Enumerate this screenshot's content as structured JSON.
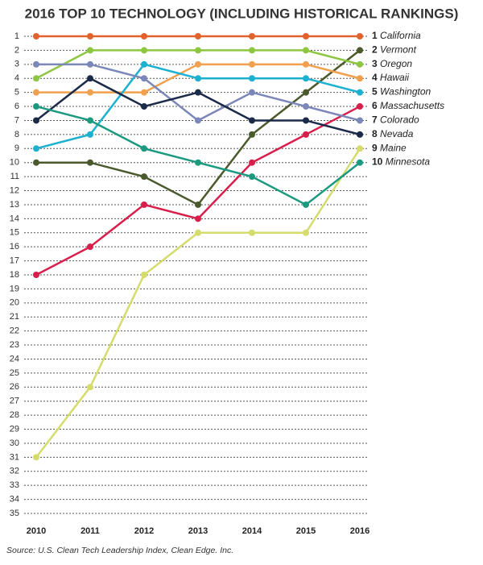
{
  "chart_data": {
    "type": "line",
    "title": "2016 TOP 10 TECHNOLOGY (INCLUDING HISTORICAL RANKINGS)",
    "source": "Source: U.S. Clean Tech Leadership Index, Clean Edge. Inc.",
    "categories": [
      "2010",
      "2011",
      "2012",
      "2013",
      "2014",
      "2015",
      "2016"
    ],
    "ylim": [
      1,
      35
    ],
    "yticks": [
      1,
      2,
      3,
      4,
      5,
      6,
      7,
      8,
      9,
      10,
      11,
      12,
      13,
      14,
      15,
      16,
      17,
      18,
      19,
      20,
      21,
      22,
      23,
      24,
      25,
      26,
      27,
      28,
      29,
      30,
      31,
      32,
      33,
      34,
      35
    ],
    "y_inverted": true,
    "grid": true,
    "series": [
      {
        "name": "California",
        "color": "#e1622b",
        "values": [
          1,
          1,
          1,
          1,
          1,
          1,
          1
        ]
      },
      {
        "name": "Vermont",
        "color": "#4b5a2c",
        "values": [
          10,
          10,
          11,
          13,
          8,
          5,
          2
        ]
      },
      {
        "name": "Oregon",
        "color": "#8dc641",
        "values": [
          4,
          2,
          2,
          2,
          2,
          2,
          3
        ]
      },
      {
        "name": "Hawaii",
        "color": "#f0a04e",
        "values": [
          5,
          5,
          5,
          3,
          3,
          3,
          4
        ]
      },
      {
        "name": "Washington",
        "color": "#1cb1d1",
        "values": [
          9,
          8,
          3,
          4,
          4,
          4,
          5
        ]
      },
      {
        "name": "Massachusetts",
        "color": "#d81f4b",
        "values": [
          18,
          16,
          13,
          14,
          10,
          8,
          6
        ]
      },
      {
        "name": "Colorado",
        "color": "#7b87b8",
        "values": [
          3,
          3,
          4,
          7,
          5,
          6,
          7
        ]
      },
      {
        "name": "Nevada",
        "color": "#1b2a48",
        "values": [
          7,
          4,
          6,
          5,
          7,
          7,
          8
        ]
      },
      {
        "name": "Maine",
        "color": "#d5dc6c",
        "values": [
          31,
          26,
          18,
          15,
          15,
          15,
          9
        ]
      },
      {
        "name": "Minnesota",
        "color": "#1b9a80",
        "values": [
          6,
          7,
          9,
          10,
          11,
          13,
          10
        ]
      }
    ]
  }
}
